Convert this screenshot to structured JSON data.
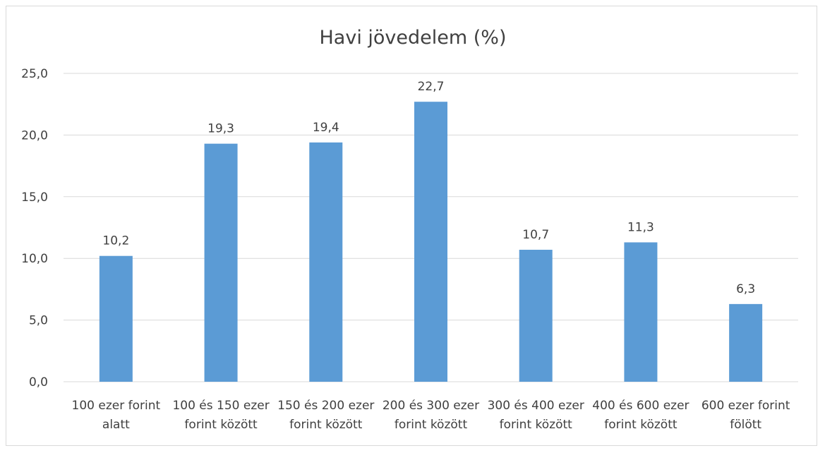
{
  "chart_data": {
    "type": "bar",
    "title": "Havi jövedelem (%)",
    "categories": [
      [
        "100 ezer forint",
        "alatt"
      ],
      [
        "100 és 150 ezer",
        "forint között"
      ],
      [
        "150 és 200 ezer",
        "forint között"
      ],
      [
        "200 és 300 ezer",
        "forint között"
      ],
      [
        "300 és 400 ezer",
        "forint között"
      ],
      [
        "400 és 600 ezer",
        "forint között"
      ],
      [
        "600 ezer forint",
        "fölött"
      ]
    ],
    "values": [
      10.2,
      19.3,
      19.4,
      22.7,
      10.7,
      11.3,
      6.3
    ],
    "data_labels": [
      "10,2",
      "19,3",
      "19,4",
      "22,7",
      "10,7",
      "11,3",
      "6,3"
    ],
    "yticks": [
      "0,0",
      "5,0",
      "10,0",
      "15,0",
      "20,0",
      "25,0"
    ],
    "ylim": [
      0,
      25
    ],
    "xlabel": "",
    "ylabel": "",
    "grid": true,
    "legend": "none",
    "colors": {
      "bar": "#5b9bd5",
      "grid": "#d9d9d9",
      "text": "#404040",
      "border": "#d9d9d9"
    }
  }
}
